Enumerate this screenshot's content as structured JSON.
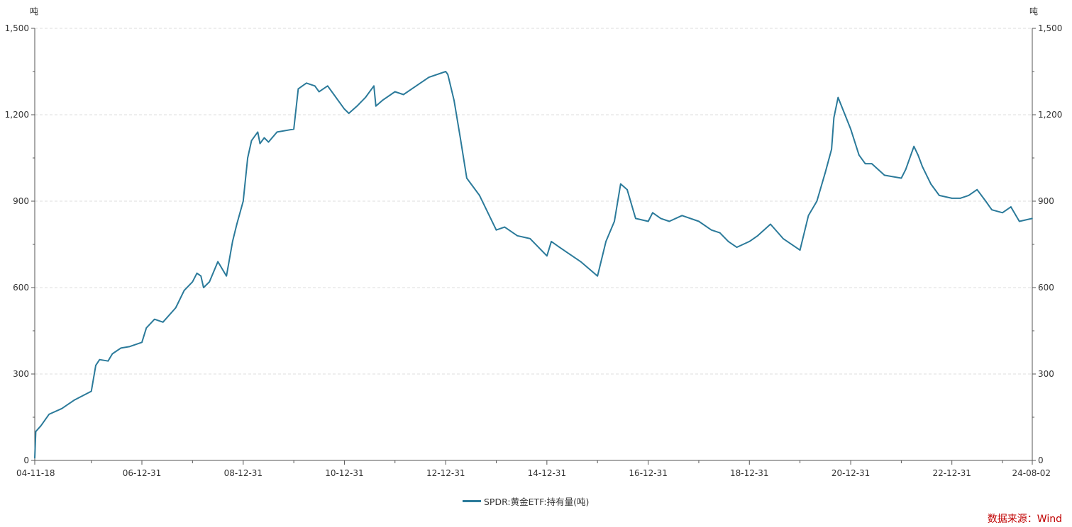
{
  "colors": {
    "series": "#2b7a9a",
    "source": "#c00000",
    "grid": "#dddddd",
    "axis": "#555555"
  },
  "source_label": "数据来源：Wind",
  "chart_data": {
    "type": "line",
    "title": "",
    "left_unit": "吨",
    "right_unit": "吨",
    "ylim": [
      0,
      1500
    ],
    "yticks": [
      0,
      300,
      600,
      900,
      1200,
      1500
    ],
    "ytick_labels": [
      "0",
      "300",
      "600",
      "900",
      "1,200",
      "1,500"
    ],
    "xlim": [
      "2004-11-18",
      "2024-08-02"
    ],
    "xticks": [
      "2004-11-18",
      "2006-12-31",
      "2008-12-31",
      "2010-12-31",
      "2012-12-31",
      "2014-12-31",
      "2016-12-31",
      "2018-12-31",
      "2020-12-31",
      "2022-12-31",
      "2024-08-02"
    ],
    "xtick_labels": [
      "04-11-18",
      "06-12-31",
      "08-12-31",
      "10-12-31",
      "12-12-31",
      "14-12-31",
      "16-12-31",
      "18-12-31",
      "20-12-31",
      "22-12-31",
      "24-08-02"
    ],
    "grid": true,
    "legend_position": "bottom",
    "series": [
      {
        "name": "SPDR:黄金ETF:持有量(吨)",
        "x": [
          "2004-11-18",
          "2004-11-25",
          "2005-01-01",
          "2005-03-01",
          "2005-06-01",
          "2005-09-01",
          "2005-12-31",
          "2006-02-01",
          "2006-03-01",
          "2006-05-01",
          "2006-06-01",
          "2006-08-01",
          "2006-10-01",
          "2006-12-31",
          "2007-02-01",
          "2007-04-01",
          "2007-06-01",
          "2007-09-01",
          "2007-11-01",
          "2007-12-31",
          "2008-02-01",
          "2008-03-01",
          "2008-03-20",
          "2008-05-01",
          "2008-07-01",
          "2008-09-01",
          "2008-10-15",
          "2008-11-15",
          "2008-12-31",
          "2009-02-01",
          "2009-03-01",
          "2009-04-15",
          "2009-05-01",
          "2009-06-01",
          "2009-07-01",
          "2009-09-01",
          "2009-12-31",
          "2010-02-01",
          "2010-04-01",
          "2010-06-01",
          "2010-07-01",
          "2010-09-01",
          "2010-12-31",
          "2011-02-01",
          "2011-04-01",
          "2011-06-01",
          "2011-08-01",
          "2011-08-15",
          "2011-10-01",
          "2011-12-31",
          "2012-03-01",
          "2012-06-01",
          "2012-09-01",
          "2012-12-31",
          "2013-01-15",
          "2013-03-01",
          "2013-04-15",
          "2013-06-01",
          "2013-09-01",
          "2013-12-31",
          "2014-03-01",
          "2014-06-01",
          "2014-09-01",
          "2014-12-31",
          "2015-02-01",
          "2015-04-01",
          "2015-06-01",
          "2015-09-01",
          "2015-12-31",
          "2016-03-01",
          "2016-05-01",
          "2016-06-15",
          "2016-08-01",
          "2016-10-01",
          "2016-12-31",
          "2017-02-01",
          "2017-04-01",
          "2017-06-01",
          "2017-09-01",
          "2017-12-31",
          "2018-04-01",
          "2018-06-01",
          "2018-08-01",
          "2018-10-01",
          "2018-12-31",
          "2019-03-01",
          "2019-06-01",
          "2019-09-01",
          "2019-12-31",
          "2020-03-01",
          "2020-05-01",
          "2020-07-01",
          "2020-08-15",
          "2020-09-01",
          "2020-10-01",
          "2020-12-31",
          "2021-03-01",
          "2021-04-15",
          "2021-06-01",
          "2021-09-01",
          "2021-12-31",
          "2022-02-01",
          "2022-04-01",
          "2022-05-01",
          "2022-06-01",
          "2022-08-01",
          "2022-10-01",
          "2022-12-31",
          "2023-03-01",
          "2023-05-01",
          "2023-07-01",
          "2023-09-01",
          "2023-10-15",
          "2023-12-31",
          "2024-03-01",
          "2024-05-01",
          "2024-08-02"
        ],
        "values": [
          8,
          100,
          120,
          160,
          180,
          210,
          240,
          330,
          350,
          345,
          370,
          390,
          395,
          410,
          460,
          490,
          480,
          530,
          590,
          620,
          650,
          640,
          600,
          620,
          690,
          640,
          760,
          820,
          900,
          1050,
          1110,
          1140,
          1100,
          1120,
          1105,
          1140,
          1150,
          1290,
          1310,
          1300,
          1280,
          1300,
          1220,
          1205,
          1230,
          1260,
          1300,
          1230,
          1250,
          1280,
          1270,
          1300,
          1330,
          1350,
          1340,
          1250,
          1120,
          980,
          920,
          800,
          810,
          780,
          770,
          710,
          760,
          740,
          720,
          690,
          640,
          760,
          830,
          960,
          940,
          840,
          830,
          860,
          840,
          830,
          850,
          830,
          800,
          790,
          760,
          740,
          760,
          780,
          820,
          770,
          730,
          850,
          900,
          1000,
          1080,
          1190,
          1260,
          1150,
          1060,
          1030,
          1030,
          990,
          980,
          1010,
          1090,
          1060,
          1020,
          960,
          920,
          910,
          910,
          920,
          940,
          900,
          870,
          860,
          880,
          830,
          840
        ]
      }
    ]
  }
}
